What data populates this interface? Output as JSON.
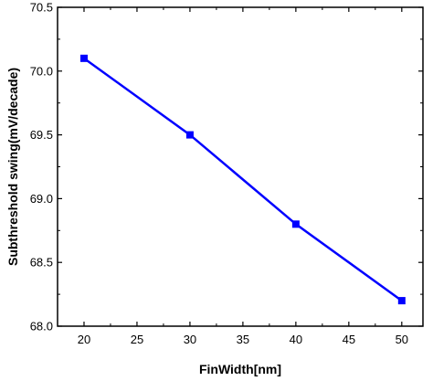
{
  "chart_data": {
    "type": "line",
    "xlabel": "FinWidth[nm]",
    "ylabel": "Subthreshold swing(mV/decade)",
    "xlim": [
      17.5,
      52
    ],
    "ylim": [
      68.0,
      70.5
    ],
    "x_ticks": [
      20,
      25,
      30,
      35,
      40,
      45,
      50
    ],
    "y_ticks": [
      68.0,
      68.5,
      69.0,
      69.5,
      70.0,
      70.5
    ],
    "x_tick_labels": [
      "20",
      "25",
      "30",
      "35",
      "40",
      "45",
      "50"
    ],
    "y_tick_labels": [
      "68.0",
      "68.5",
      "69.0",
      "69.5",
      "70.0",
      "70.5"
    ],
    "grid": false,
    "series": [
      {
        "color": "#0000ff",
        "marker": "square",
        "x": [
          20,
          30,
          40,
          50
        ],
        "y": [
          70.1,
          69.5,
          68.8,
          68.2
        ]
      }
    ]
  }
}
